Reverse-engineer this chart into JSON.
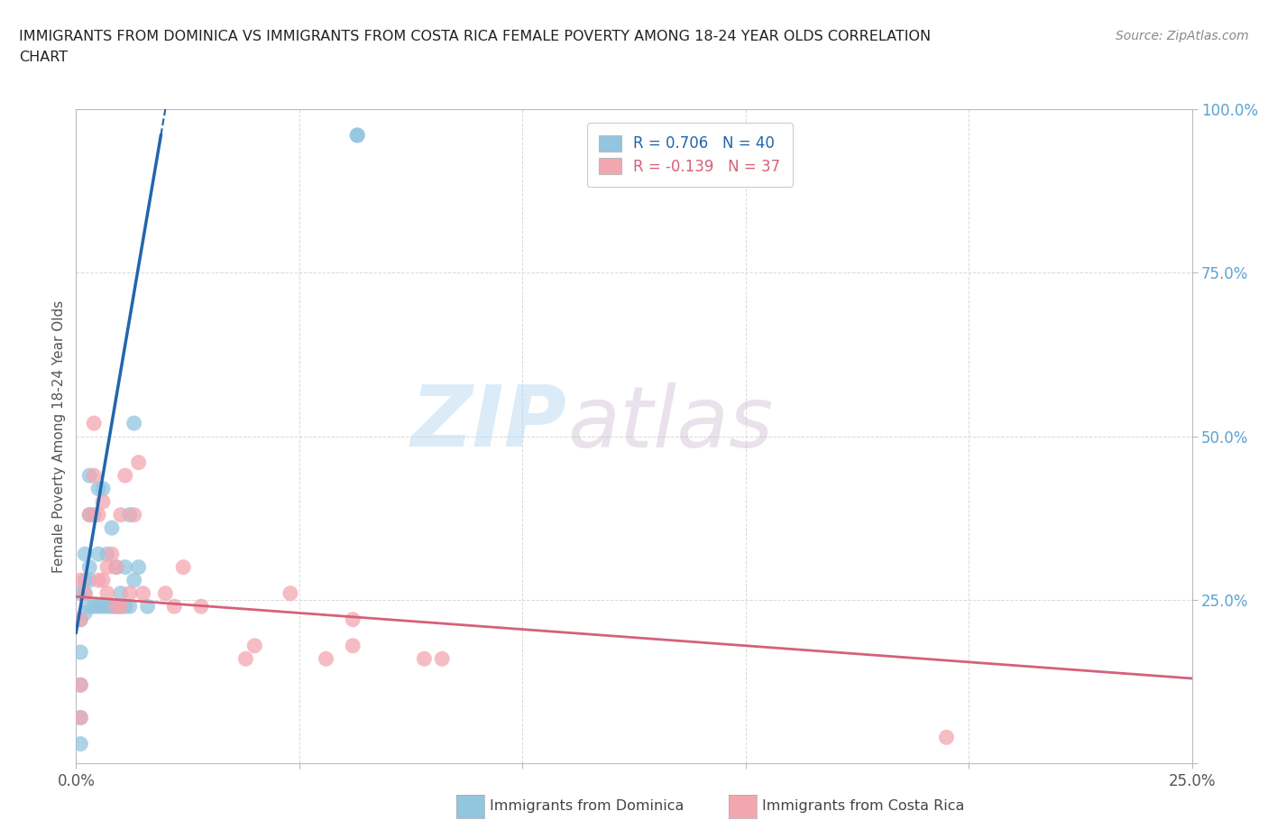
{
  "title_line1": "IMMIGRANTS FROM DOMINICA VS IMMIGRANTS FROM COSTA RICA FEMALE POVERTY AMONG 18-24 YEAR OLDS CORRELATION",
  "title_line2": "CHART",
  "source": "Source: ZipAtlas.com",
  "ylabel": "Female Poverty Among 18-24 Year Olds",
  "xlim": [
    0.0,
    0.25
  ],
  "ylim": [
    0.0,
    1.0
  ],
  "xticks": [
    0.0,
    0.05,
    0.1,
    0.15,
    0.2,
    0.25
  ],
  "yticks": [
    0.0,
    0.25,
    0.5,
    0.75,
    1.0
  ],
  "blue_color": "#92c5de",
  "pink_color": "#f4a6b0",
  "blue_line_color": "#2166ac",
  "pink_line_color": "#d6607a",
  "watermark_zip": "ZIP",
  "watermark_atlas": "atlas",
  "legend_R_blue": "R = 0.706",
  "legend_N_blue": "N = 40",
  "legend_R_pink": "R = -0.139",
  "legend_N_pink": "N = 37",
  "blue_x": [
    0.001,
    0.001,
    0.001,
    0.001,
    0.001,
    0.001,
    0.002,
    0.002,
    0.002,
    0.002,
    0.003,
    0.003,
    0.003,
    0.003,
    0.003,
    0.004,
    0.004,
    0.005,
    0.005,
    0.005,
    0.006,
    0.006,
    0.007,
    0.007,
    0.008,
    0.008,
    0.009,
    0.009,
    0.01,
    0.01,
    0.011,
    0.011,
    0.012,
    0.012,
    0.013,
    0.013,
    0.014,
    0.016,
    0.063,
    0.063
  ],
  "blue_y": [
    0.03,
    0.07,
    0.12,
    0.17,
    0.22,
    0.26,
    0.23,
    0.26,
    0.28,
    0.32,
    0.24,
    0.28,
    0.3,
    0.38,
    0.44,
    0.24,
    0.38,
    0.24,
    0.32,
    0.42,
    0.24,
    0.42,
    0.24,
    0.32,
    0.24,
    0.36,
    0.24,
    0.3,
    0.24,
    0.26,
    0.24,
    0.3,
    0.24,
    0.38,
    0.28,
    0.52,
    0.3,
    0.24,
    0.96,
    0.96
  ],
  "pink_x": [
    0.001,
    0.001,
    0.001,
    0.001,
    0.002,
    0.003,
    0.004,
    0.004,
    0.005,
    0.005,
    0.006,
    0.006,
    0.007,
    0.007,
    0.008,
    0.009,
    0.009,
    0.01,
    0.01,
    0.011,
    0.012,
    0.013,
    0.014,
    0.015,
    0.02,
    0.022,
    0.024,
    0.028,
    0.038,
    0.04,
    0.048,
    0.056,
    0.062,
    0.062,
    0.078,
    0.082,
    0.195
  ],
  "pink_y": [
    0.07,
    0.12,
    0.22,
    0.28,
    0.26,
    0.38,
    0.44,
    0.52,
    0.28,
    0.38,
    0.28,
    0.4,
    0.26,
    0.3,
    0.32,
    0.24,
    0.3,
    0.24,
    0.38,
    0.44,
    0.26,
    0.38,
    0.46,
    0.26,
    0.26,
    0.24,
    0.3,
    0.24,
    0.16,
    0.18,
    0.26,
    0.16,
    0.18,
    0.22,
    0.16,
    0.16,
    0.04
  ],
  "blue_slope": 40.0,
  "blue_intercept": 0.2,
  "blue_line_x_start": -0.001,
  "blue_line_x_solid_end": 0.019,
  "blue_line_x_dash_end": 0.025,
  "pink_slope": -0.5,
  "pink_intercept": 0.255
}
